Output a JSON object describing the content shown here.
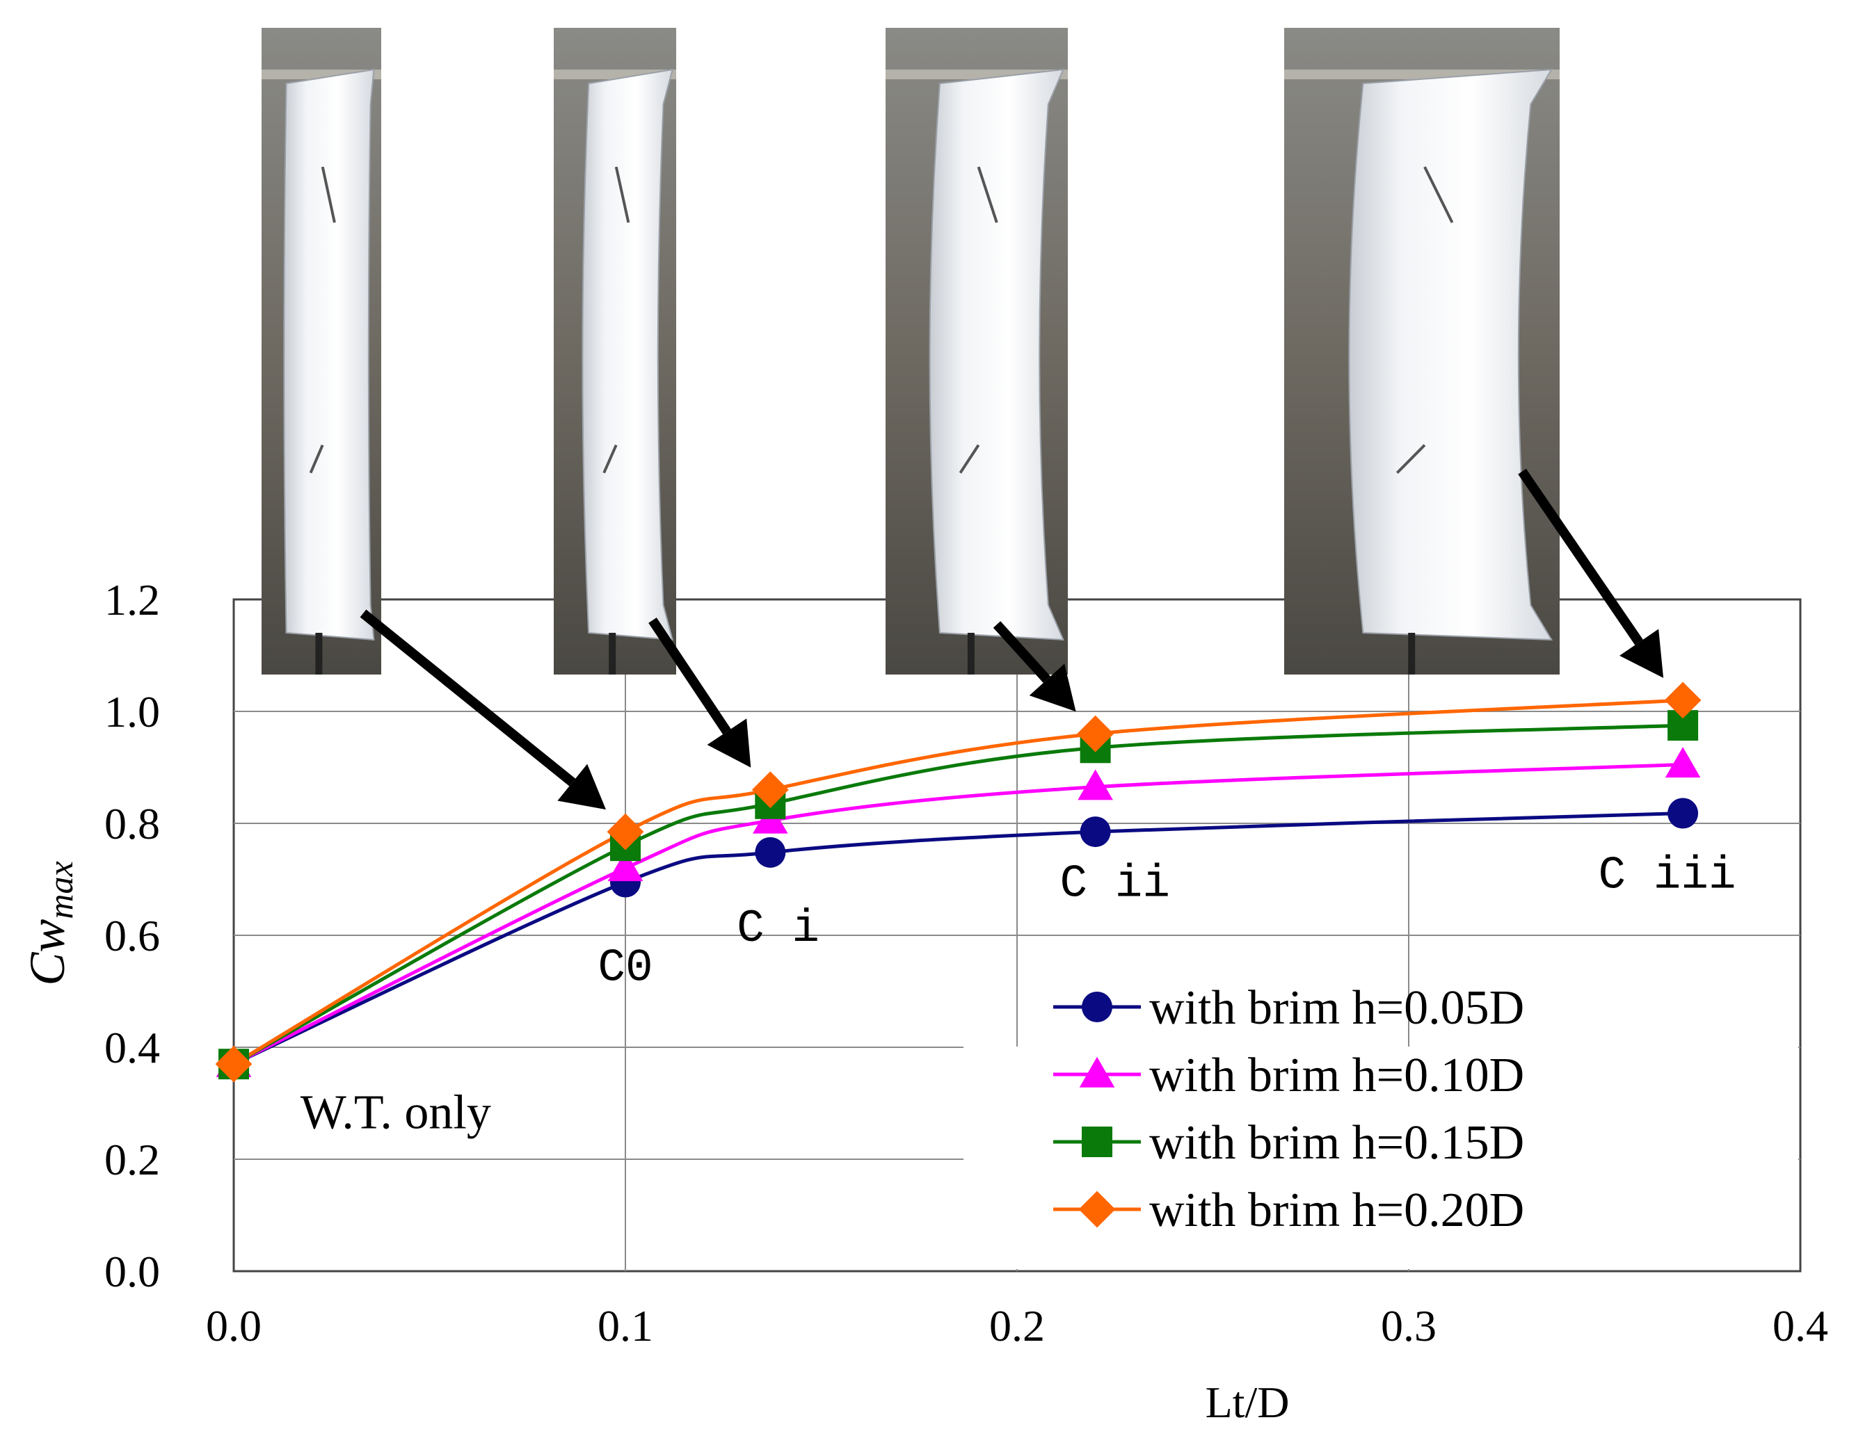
{
  "chart_data": {
    "type": "line",
    "xlabel": "Lt/D",
    "ylabel": "Cw",
    "ylabel_sub": "max",
    "xlim": [
      0,
      0.4
    ],
    "ylim": [
      0,
      1.2
    ],
    "x_ticks": [
      "0.0",
      "0.1",
      "0.2",
      "0.3",
      "0.4"
    ],
    "x_tick_values": [
      0,
      0.1,
      0.2,
      0.3,
      0.4
    ],
    "y_ticks": [
      "0.0",
      "0.2",
      "0.4",
      "0.6",
      "0.8",
      "1.0",
      "1.2"
    ],
    "y_tick_values": [
      0,
      0.2,
      0.4,
      0.6,
      0.8,
      1.0,
      1.2
    ],
    "grid": true,
    "legend_position": "bottom-right",
    "series": [
      {
        "name": "with brim h=0.05D",
        "color": "#0a0a82",
        "marker": "circle",
        "x": [
          0.0,
          0.1,
          0.137,
          0.22,
          0.37
        ],
        "y": [
          0.37,
          0.695,
          0.748,
          0.785,
          0.818
        ]
      },
      {
        "name": "with brim h=0.10D",
        "color": "#ff00ff",
        "marker": "triangle",
        "x": [
          0.0,
          0.1,
          0.137,
          0.22,
          0.37
        ],
        "y": [
          0.37,
          0.72,
          0.805,
          0.865,
          0.905
        ]
      },
      {
        "name": "with brim h=0.15D",
        "color": "#0a7a0a",
        "marker": "square",
        "x": [
          0.0,
          0.1,
          0.137,
          0.22,
          0.37
        ],
        "y": [
          0.37,
          0.76,
          0.835,
          0.935,
          0.975
        ]
      },
      {
        "name": "with brim h=0.20D",
        "color": "#ff6600",
        "marker": "diamond",
        "x": [
          0.0,
          0.1,
          0.137,
          0.22,
          0.37
        ],
        "y": [
          0.37,
          0.785,
          0.86,
          0.96,
          1.02
        ]
      }
    ],
    "annotations": [
      {
        "text": "W.T. only",
        "x": 0.017,
        "y": 0.255
      },
      {
        "text": "C0",
        "x": 0.1,
        "y": 0.52
      },
      {
        "text": "C i",
        "x": 0.139,
        "y": 0.59
      },
      {
        "text": "C ii",
        "x": 0.225,
        "y": 0.67
      },
      {
        "text": "C iii",
        "x": 0.366,
        "y": 0.685
      }
    ],
    "photos": [
      {
        "name": "shroud-c0-photo",
        "points_to": {
          "x": 0.1,
          "y": 0.785
        }
      },
      {
        "name": "shroud-ci-photo",
        "points_to": {
          "x": 0.137,
          "y": 0.86
        }
      },
      {
        "name": "shroud-cii-photo",
        "points_to": {
          "x": 0.22,
          "y": 0.96
        }
      },
      {
        "name": "shroud-ciii-photo",
        "points_to": {
          "x": 0.37,
          "y": 1.02
        }
      }
    ]
  }
}
